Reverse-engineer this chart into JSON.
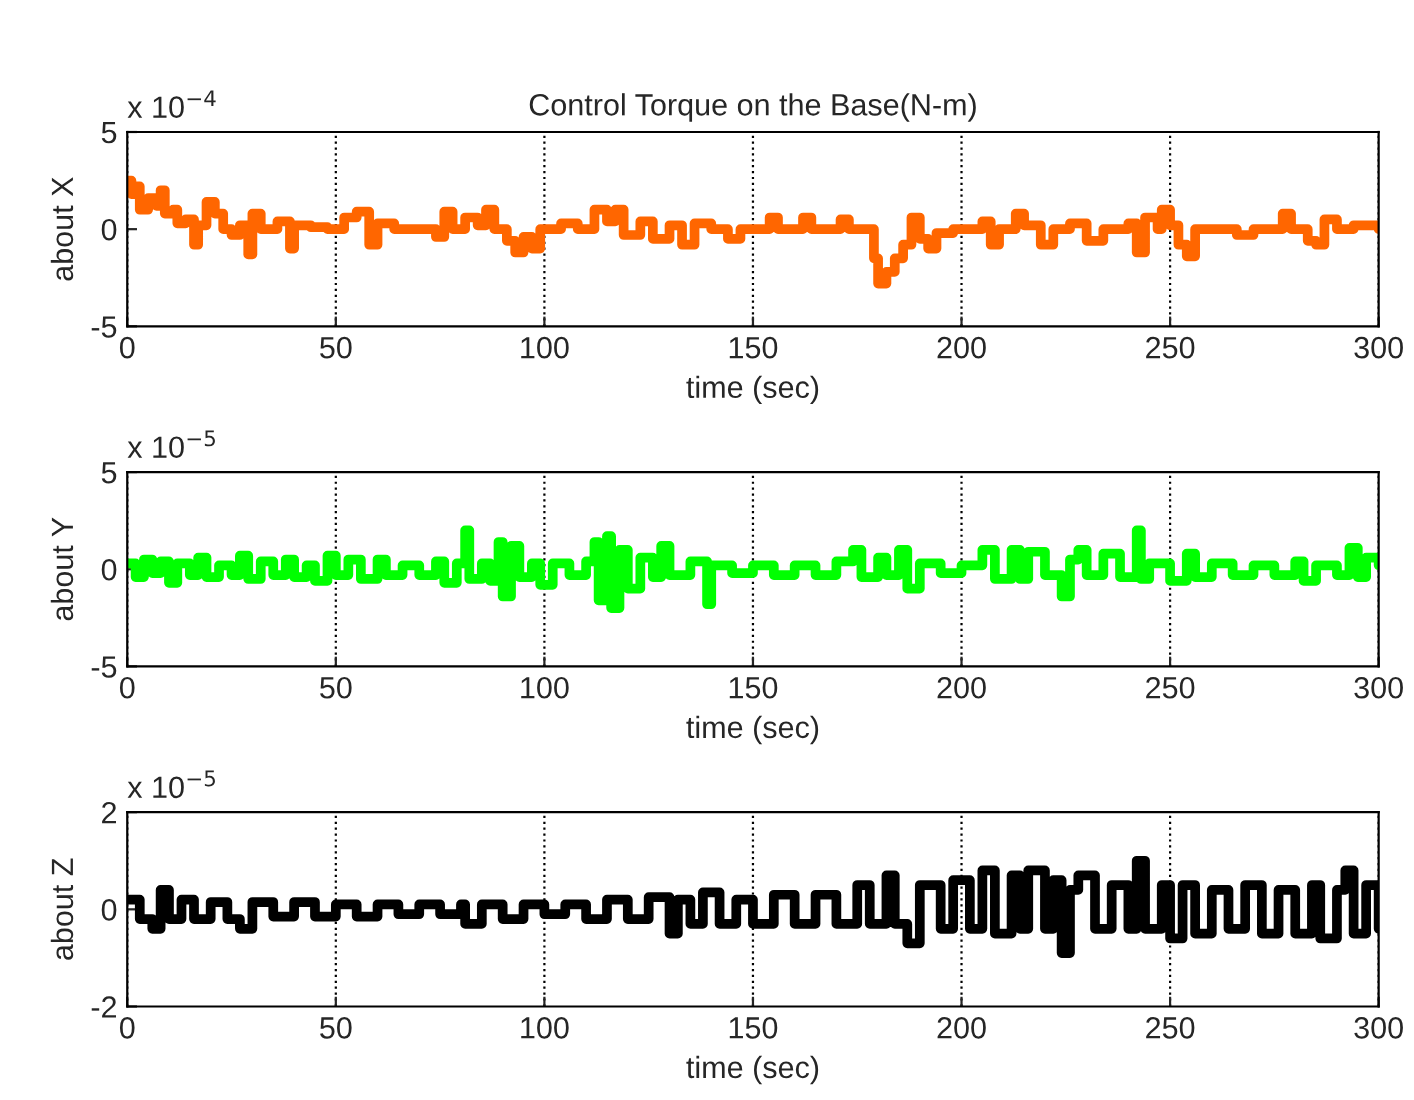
{
  "chart_data": [
    {
      "type": "step",
      "title": "Control Torque on the Base(N-m)",
      "xlabel": "time (sec)",
      "ylabel": "about X",
      "annotations": [
        "x 10$^{−4}$"
      ],
      "xlim": [
        0,
        300
      ],
      "xticks": [
        0,
        50,
        100,
        150,
        200,
        250,
        300
      ],
      "ylim": [
        -5,
        5
      ],
      "yticks": [
        -5,
        0,
        5
      ],
      "grid": "x",
      "series": [
        {
          "color": "#ff6600",
          "x": [
            0,
            1,
            2,
            3,
            5,
            7,
            8,
            9,
            11,
            12,
            14,
            16,
            17,
            19,
            21,
            23,
            25,
            27,
            29,
            30,
            32,
            36,
            39,
            40,
            44,
            48,
            52,
            55,
            58,
            60,
            64,
            70,
            74,
            76,
            78,
            81,
            84,
            86,
            88,
            91,
            93,
            95,
            97,
            99,
            104,
            108,
            112,
            115,
            117,
            119,
            123,
            126,
            130,
            133,
            136,
            140,
            144,
            147,
            154,
            156,
            162,
            164,
            171,
            173,
            177,
            179,
            180,
            182,
            184,
            186,
            188,
            190,
            192,
            194,
            198,
            205,
            207,
            209,
            213,
            215,
            219,
            222,
            226,
            230,
            234,
            240,
            242,
            244,
            247,
            248,
            250,
            252,
            254,
            256,
            260,
            266,
            270,
            276,
            277,
            279,
            283,
            285,
            287,
            290,
            294,
            300
          ],
          "values": [
            2.5,
            1.8,
            2.2,
            1.0,
            1.6,
            1.2,
            2.0,
            0.8,
            1.0,
            0.3,
            0.5,
            -0.8,
            0.2,
            1.4,
            0.8,
            0.0,
            -0.3,
            0.2,
            -1.3,
            0.8,
            0.0,
            0.4,
            -1.0,
            0.2,
            0.1,
            0.0,
            0.6,
            0.9,
            -0.8,
            0.3,
            0.0,
            0.0,
            -0.4,
            0.9,
            0.0,
            0.6,
            0.2,
            1.0,
            0.0,
            -0.6,
            -1.2,
            -0.4,
            -1.0,
            0.0,
            0.3,
            0.0,
            1.0,
            0.4,
            1.0,
            -0.3,
            0.4,
            -0.5,
            0.2,
            -0.8,
            0.3,
            0.0,
            -0.5,
            0.0,
            0.6,
            0.0,
            0.6,
            0.0,
            0.5,
            0.0,
            0.0,
            -1.5,
            -2.8,
            -2.2,
            -1.5,
            -0.8,
            0.6,
            -0.5,
            -1.0,
            -0.2,
            0.0,
            0.4,
            -0.8,
            0.0,
            0.8,
            0.2,
            -0.8,
            0.0,
            0.3,
            -0.6,
            0.0,
            0.3,
            -1.2,
            0.6,
            0.0,
            1.0,
            0.2,
            -0.8,
            -1.4,
            0.0,
            0.0,
            -0.3,
            0.0,
            0.0,
            0.8,
            0.0,
            -0.6,
            -0.8,
            0.5,
            0.0,
            0.2,
            0.0
          ]
        }
      ]
    },
    {
      "type": "step",
      "xlabel": "time (sec)",
      "ylabel": "about Y",
      "annotations": [
        "x 10$^{−5}$"
      ],
      "xlim": [
        0,
        300
      ],
      "xticks": [
        0,
        50,
        100,
        150,
        200,
        250,
        300
      ],
      "ylim": [
        -5,
        5
      ],
      "yticks": [
        -5,
        0,
        5
      ],
      "grid": "x",
      "series": [
        {
          "color": "#00ff00",
          "x": [
            0,
            2,
            4,
            6,
            8,
            10,
            12,
            15,
            17,
            19,
            22,
            25,
            27,
            29,
            32,
            35,
            38,
            40,
            43,
            45,
            48,
            50,
            53,
            56,
            60,
            62,
            66,
            70,
            74,
            76,
            79,
            81,
            82,
            85,
            87,
            89,
            90,
            92,
            94,
            97,
            99,
            102,
            106,
            110,
            112,
            113,
            115,
            116,
            118,
            120,
            123,
            126,
            128,
            130,
            135,
            139,
            140,
            145,
            150,
            155,
            160,
            165,
            170,
            174,
            176,
            180,
            182,
            185,
            187,
            190,
            195,
            200,
            205,
            208,
            212,
            214,
            216,
            220,
            224,
            226,
            228,
            230,
            234,
            238,
            242,
            243,
            245,
            250,
            254,
            256,
            260,
            265,
            270,
            275,
            280,
            282,
            285,
            290,
            293,
            295,
            297,
            300
          ],
          "values": [
            0.3,
            -0.4,
            0.5,
            -0.2,
            0.4,
            -0.7,
            0.3,
            -0.3,
            0.6,
            -0.4,
            0.2,
            -0.3,
            0.7,
            -0.5,
            0.4,
            -0.3,
            0.5,
            -0.4,
            0.2,
            -0.6,
            0.7,
            -0.3,
            0.5,
            -0.5,
            0.5,
            -0.3,
            0.2,
            -0.3,
            0.4,
            -0.7,
            0.3,
            2.0,
            -0.5,
            0.3,
            -0.6,
            1.4,
            -1.4,
            1.2,
            -0.4,
            0.3,
            -0.8,
            0.3,
            -0.3,
            0.4,
            1.4,
            -1.6,
            1.7,
            -2.0,
            1.0,
            -1.0,
            0.6,
            -0.4,
            1.2,
            -0.3,
            0.4,
            -1.8,
            0.2,
            -0.2,
            0.2,
            -0.3,
            0.2,
            -0.3,
            0.4,
            1.0,
            -0.4,
            0.6,
            -0.3,
            1.0,
            -1.0,
            0.3,
            -0.2,
            0.2,
            1.0,
            -0.5,
            1.0,
            -0.5,
            0.9,
            -0.3,
            -1.4,
            0.5,
            1.0,
            -0.3,
            0.8,
            -0.4,
            2.0,
            -0.5,
            0.3,
            -0.6,
            0.8,
            -0.4,
            0.3,
            -0.3,
            0.2,
            -0.3,
            0.4,
            -0.6,
            0.2,
            -0.3,
            1.1,
            -0.4,
            0.6,
            0.2
          ]
        }
      ]
    },
    {
      "type": "step",
      "xlabel": "time (sec)",
      "ylabel": "about Z",
      "annotations": [
        "x 10$^{−5}$"
      ],
      "xlim": [
        0,
        300
      ],
      "xticks": [
        0,
        50,
        100,
        150,
        200,
        250,
        300
      ],
      "ylim": [
        -2,
        2
      ],
      "yticks": [
        -2,
        0,
        2
      ],
      "grid": "x",
      "series": [
        {
          "color": "#000000",
          "x": [
            0,
            3,
            6,
            8,
            10,
            13,
            16,
            20,
            24,
            27,
            30,
            35,
            40,
            45,
            50,
            55,
            60,
            65,
            70,
            75,
            80,
            81,
            85,
            90,
            95,
            100,
            105,
            110,
            115,
            120,
            125,
            130,
            132,
            135,
            138,
            142,
            146,
            150,
            155,
            160,
            165,
            170,
            175,
            178,
            182,
            184,
            187,
            190,
            195,
            198,
            202,
            205,
            208,
            212,
            214,
            216,
            220,
            222,
            224,
            226,
            228,
            232,
            236,
            240,
            242,
            244,
            248,
            250,
            253,
            256,
            260,
            264,
            268,
            272,
            276,
            280,
            284,
            286,
            290,
            292,
            294,
            297,
            300
          ],
          "values": [
            0.2,
            -0.2,
            -0.4,
            0.4,
            -0.2,
            0.2,
            -0.2,
            0.15,
            -0.2,
            -0.4,
            0.15,
            -0.15,
            0.15,
            -0.15,
            0.1,
            -0.15,
            0.1,
            -0.1,
            0.1,
            -0.1,
            0.1,
            -0.3,
            0.1,
            -0.2,
            0.1,
            -0.1,
            0.1,
            -0.2,
            0.2,
            -0.2,
            0.25,
            -0.5,
            0.2,
            -0.3,
            0.35,
            -0.3,
            0.2,
            -0.3,
            0.3,
            -0.3,
            0.3,
            -0.3,
            0.5,
            -0.3,
            0.7,
            -0.3,
            -0.7,
            0.5,
            -0.4,
            0.6,
            -0.4,
            0.8,
            -0.5,
            0.7,
            -0.4,
            0.8,
            -0.4,
            0.6,
            -0.9,
            0.4,
            0.7,
            -0.4,
            0.5,
            -0.4,
            1.0,
            -0.4,
            0.5,
            -0.6,
            0.5,
            -0.5,
            0.4,
            -0.4,
            0.5,
            -0.5,
            0.4,
            -0.5,
            0.5,
            -0.6,
            0.4,
            0.8,
            -0.5,
            0.5,
            -0.4
          ]
        }
      ]
    }
  ]
}
